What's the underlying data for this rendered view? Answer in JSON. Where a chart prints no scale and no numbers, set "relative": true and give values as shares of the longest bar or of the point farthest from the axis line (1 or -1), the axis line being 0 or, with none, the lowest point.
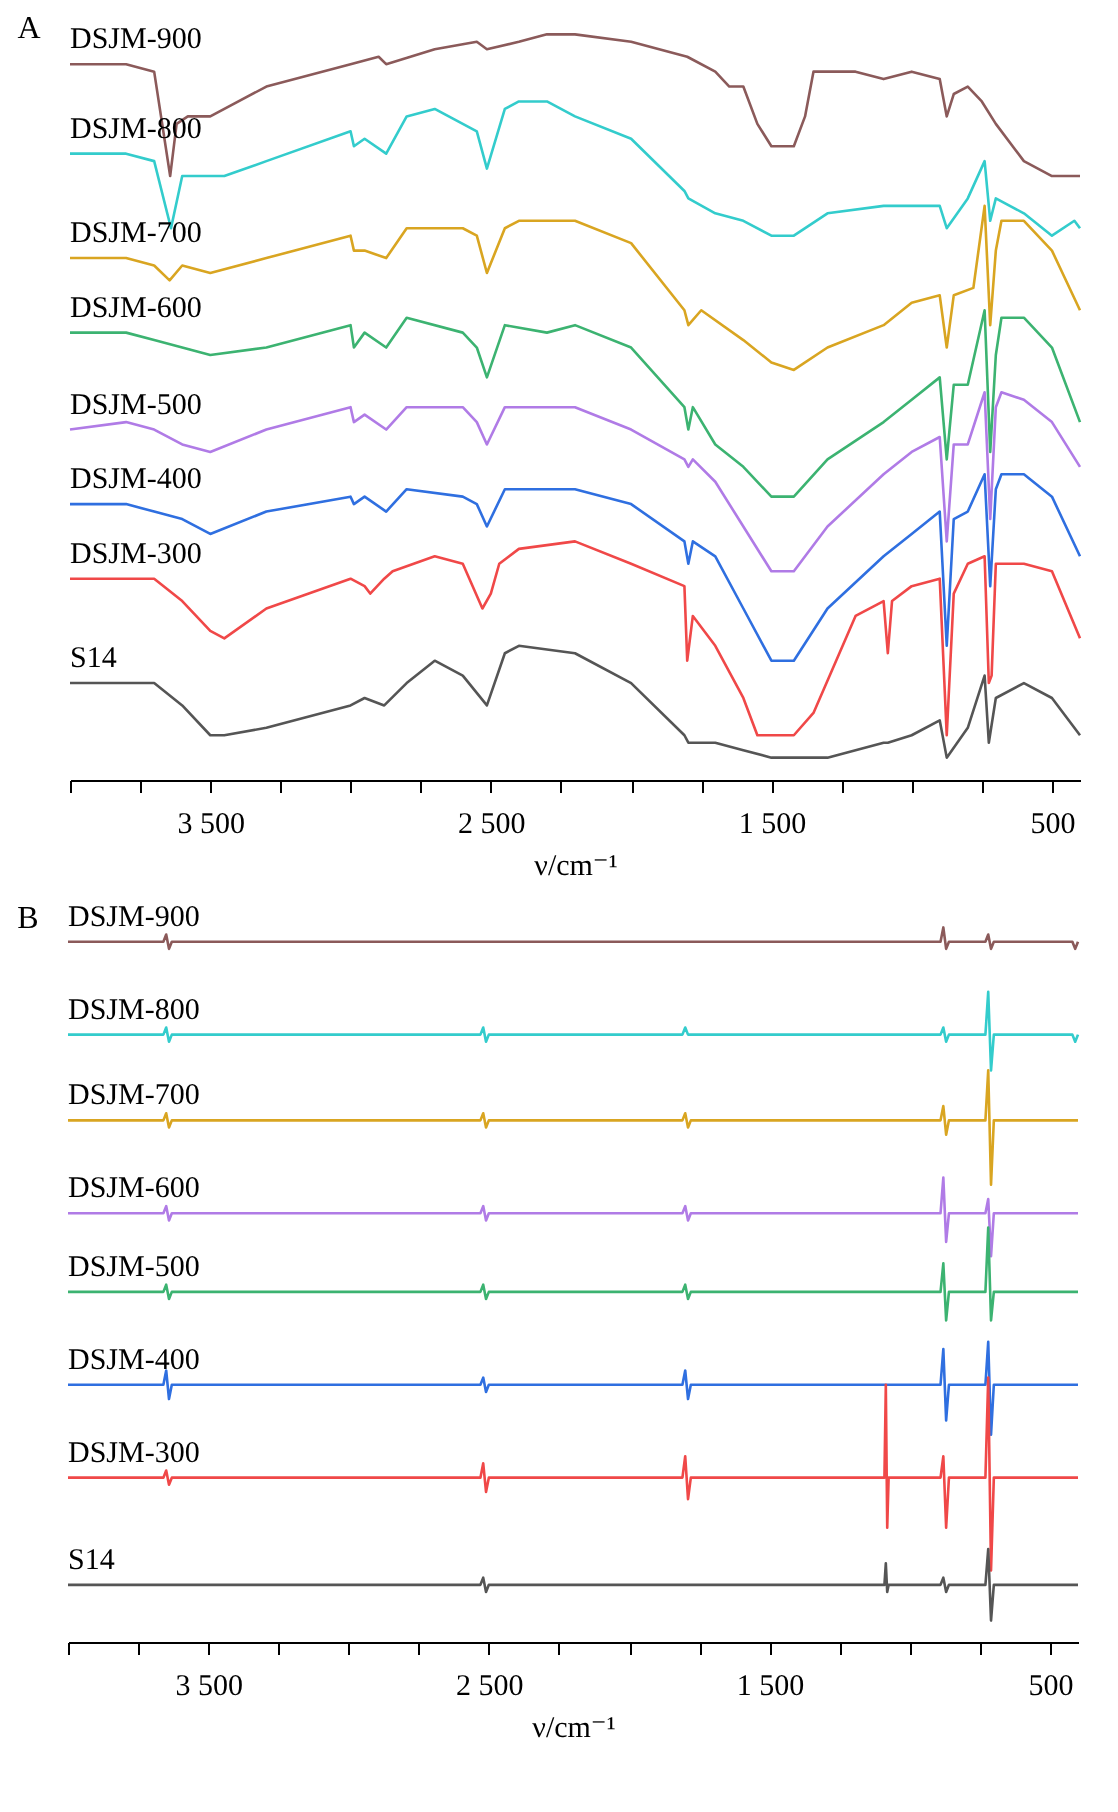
{
  "chart_data": [
    {
      "type": "line",
      "title": "A",
      "xlabel": "ν/cm⁻¹",
      "relative": true,
      "xlim": [
        4000,
        400
      ],
      "xticks": [
        {
          "value": 4000,
          "label": null
        },
        {
          "value": 3750,
          "label": null
        },
        {
          "value": 3500,
          "label": "3 500"
        },
        {
          "value": 3250,
          "label": null
        },
        {
          "value": 3000,
          "label": null
        },
        {
          "value": 2750,
          "label": null
        },
        {
          "value": 2500,
          "label": "2 500"
        },
        {
          "value": 2250,
          "label": null
        },
        {
          "value": 2000,
          "label": null
        },
        {
          "value": 1750,
          "label": null
        },
        {
          "value": 1500,
          "label": "1 500"
        },
        {
          "value": 1250,
          "label": null
        },
        {
          "value": 1000,
          "label": null
        },
        {
          "value": 750,
          "label": null
        },
        500
      ],
      "series": [
        {
          "name": "DSJM-900",
          "color": "#8b5a5a",
          "x": [
            4000,
            3800,
            3700,
            3643,
            3620,
            3580,
            3500,
            3300,
            3000,
            2900,
            2873,
            2700,
            2550,
            2514,
            2400,
            2300,
            2200,
            2000,
            1800,
            1700,
            1650,
            1600,
            1550,
            1500,
            1420,
            1380,
            1350,
            1200,
            1100,
            1000,
            900,
            875,
            850,
            800,
            750,
            700,
            600,
            500,
            400
          ],
          "values": [
            0.96,
            0.96,
            0.95,
            0.81,
            0.88,
            0.89,
            0.89,
            0.93,
            0.96,
            0.97,
            0.96,
            0.98,
            0.99,
            0.98,
            0.99,
            1.0,
            1.0,
            0.99,
            0.97,
            0.95,
            0.93,
            0.93,
            0.88,
            0.85,
            0.85,
            0.89,
            0.95,
            0.95,
            0.94,
            0.95,
            0.94,
            0.89,
            0.92,
            0.93,
            0.91,
            0.88,
            0.83,
            0.81,
            0.81
          ]
        },
        {
          "name": "DSJM-800",
          "color": "#33cccc",
          "x": [
            4000,
            3800,
            3700,
            3640,
            3600,
            3500,
            3450,
            3300,
            3000,
            2988,
            2950,
            2873,
            2800,
            2700,
            2600,
            2550,
            2514,
            2450,
            2400,
            2300,
            2200,
            2000,
            1810,
            1796,
            1700,
            1600,
            1500,
            1420,
            1300,
            1100,
            1000,
            900,
            875,
            800,
            740,
            720,
            700,
            600,
            500,
            420,
            400
          ],
          "values": [
            0.84,
            0.84,
            0.83,
            0.74,
            0.81,
            0.81,
            0.81,
            0.83,
            0.87,
            0.85,
            0.86,
            0.84,
            0.89,
            0.9,
            0.88,
            0.87,
            0.82,
            0.9,
            0.91,
            0.91,
            0.89,
            0.86,
            0.79,
            0.78,
            0.76,
            0.75,
            0.73,
            0.73,
            0.76,
            0.77,
            0.77,
            0.77,
            0.74,
            0.78,
            0.83,
            0.75,
            0.78,
            0.76,
            0.73,
            0.75,
            0.74
          ]
        },
        {
          "name": "DSJM-700",
          "color": "#d9a521",
          "x": [
            4000,
            3800,
            3700,
            3645,
            3600,
            3500,
            3300,
            3000,
            2988,
            2950,
            2873,
            2800,
            2600,
            2550,
            2514,
            2450,
            2400,
            2200,
            2000,
            1810,
            1796,
            1750,
            1600,
            1500,
            1420,
            1300,
            1100,
            1000,
            900,
            875,
            850,
            780,
            740,
            720,
            700,
            680,
            600,
            500,
            400
          ],
          "values": [
            0.7,
            0.7,
            0.69,
            0.67,
            0.69,
            0.68,
            0.7,
            0.73,
            0.71,
            0.71,
            0.7,
            0.74,
            0.74,
            0.73,
            0.68,
            0.74,
            0.75,
            0.75,
            0.72,
            0.63,
            0.61,
            0.63,
            0.59,
            0.56,
            0.55,
            0.58,
            0.61,
            0.64,
            0.65,
            0.58,
            0.65,
            0.66,
            0.77,
            0.61,
            0.71,
            0.75,
            0.75,
            0.71,
            0.63
          ]
        },
        {
          "name": "DSJM-600",
          "color": "#3cb371",
          "x": [
            4000,
            3800,
            3700,
            3600,
            3500,
            3300,
            3000,
            2988,
            2950,
            2873,
            2800,
            2600,
            2550,
            2514,
            2450,
            2300,
            2200,
            2000,
            1810,
            1796,
            1780,
            1700,
            1600,
            1500,
            1420,
            1300,
            1100,
            1000,
            900,
            875,
            850,
            800,
            740,
            720,
            700,
            680,
            600,
            500,
            400
          ],
          "values": [
            0.6,
            0.6,
            0.59,
            0.58,
            0.57,
            0.58,
            0.61,
            0.58,
            0.6,
            0.58,
            0.62,
            0.6,
            0.58,
            0.54,
            0.61,
            0.6,
            0.61,
            0.58,
            0.5,
            0.47,
            0.5,
            0.45,
            0.42,
            0.38,
            0.38,
            0.43,
            0.48,
            0.51,
            0.54,
            0.43,
            0.53,
            0.53,
            0.63,
            0.44,
            0.57,
            0.62,
            0.62,
            0.58,
            0.48
          ]
        },
        {
          "name": "DSJM-500",
          "color": "#b07be6",
          "x": [
            4000,
            3800,
            3700,
            3600,
            3500,
            3300,
            3000,
            2988,
            2950,
            2873,
            2800,
            2600,
            2550,
            2514,
            2450,
            2300,
            2200,
            2000,
            1810,
            1796,
            1780,
            1700,
            1600,
            1500,
            1420,
            1300,
            1100,
            1000,
            900,
            875,
            850,
            800,
            740,
            720,
            700,
            680,
            600,
            500,
            400
          ],
          "values": [
            0.47,
            0.48,
            0.47,
            0.45,
            0.44,
            0.47,
            0.5,
            0.48,
            0.49,
            0.47,
            0.5,
            0.5,
            0.48,
            0.45,
            0.5,
            0.5,
            0.5,
            0.47,
            0.43,
            0.42,
            0.43,
            0.4,
            0.34,
            0.28,
            0.28,
            0.34,
            0.41,
            0.44,
            0.46,
            0.32,
            0.45,
            0.45,
            0.52,
            0.35,
            0.5,
            0.52,
            0.51,
            0.48,
            0.42
          ]
        },
        {
          "name": "DSJM-400",
          "color": "#2f6fe0",
          "x": [
            4000,
            3800,
            3700,
            3600,
            3500,
            3300,
            3000,
            2988,
            2950,
            2873,
            2800,
            2600,
            2550,
            2514,
            2450,
            2300,
            2200,
            2000,
            1810,
            1796,
            1780,
            1700,
            1600,
            1500,
            1420,
            1300,
            1100,
            1000,
            900,
            875,
            850,
            800,
            740,
            720,
            700,
            680,
            600,
            500,
            400
          ],
          "values": [
            0.37,
            0.37,
            0.36,
            0.35,
            0.33,
            0.36,
            0.38,
            0.37,
            0.38,
            0.36,
            0.39,
            0.38,
            0.37,
            0.34,
            0.39,
            0.39,
            0.39,
            0.37,
            0.32,
            0.29,
            0.32,
            0.3,
            0.23,
            0.16,
            0.16,
            0.23,
            0.3,
            0.33,
            0.36,
            0.18,
            0.35,
            0.36,
            0.41,
            0.26,
            0.39,
            0.41,
            0.41,
            0.38,
            0.3
          ]
        },
        {
          "name": "DSJM-300",
          "color": "#f04848",
          "x": [
            4000,
            3800,
            3700,
            3600,
            3500,
            3450,
            3300,
            3000,
            2950,
            2930,
            2880,
            2850,
            2700,
            2600,
            2530,
            2500,
            2470,
            2400,
            2200,
            2000,
            1810,
            1800,
            1780,
            1700,
            1600,
            1550,
            1500,
            1420,
            1350,
            1200,
            1100,
            1085,
            1070,
            1000,
            900,
            875,
            850,
            800,
            740,
            725,
            715,
            700,
            600,
            500,
            400
          ],
          "values": [
            0.27,
            0.27,
            0.27,
            0.24,
            0.2,
            0.19,
            0.23,
            0.27,
            0.26,
            0.25,
            0.27,
            0.28,
            0.3,
            0.29,
            0.23,
            0.25,
            0.29,
            0.31,
            0.32,
            0.29,
            0.26,
            0.16,
            0.22,
            0.18,
            0.11,
            0.06,
            0.06,
            0.06,
            0.09,
            0.22,
            0.24,
            0.17,
            0.24,
            0.26,
            0.27,
            0.06,
            0.25,
            0.29,
            0.3,
            0.13,
            0.14,
            0.29,
            0.29,
            0.28,
            0.19
          ]
        },
        {
          "name": "S14",
          "color": "#555555",
          "x": [
            4000,
            3800,
            3700,
            3600,
            3500,
            3450,
            3300,
            3000,
            2950,
            2880,
            2800,
            2700,
            2600,
            2514,
            2450,
            2400,
            2200,
            2000,
            1810,
            1796,
            1700,
            1600,
            1500,
            1300,
            1100,
            1085,
            1000,
            900,
            875,
            800,
            740,
            725,
            700,
            600,
            500,
            400
          ],
          "values": [
            0.13,
            0.13,
            0.13,
            0.1,
            0.06,
            0.06,
            0.07,
            0.1,
            0.11,
            0.1,
            0.13,
            0.16,
            0.14,
            0.1,
            0.17,
            0.18,
            0.17,
            0.13,
            0.06,
            0.05,
            0.05,
            0.04,
            0.03,
            0.03,
            0.05,
            0.05,
            0.06,
            0.08,
            0.03,
            0.07,
            0.14,
            0.05,
            0.11,
            0.13,
            0.11,
            0.06
          ]
        }
      ]
    },
    {
      "type": "line",
      "title": "B",
      "xlabel": "ν/cm⁻¹",
      "relative": true,
      "xlim": [
        4000,
        400
      ],
      "xticks": [
        {
          "value": 4000,
          "label": null
        },
        {
          "value": 3750,
          "label": null
        },
        {
          "value": 3500,
          "label": "3 500"
        },
        {
          "value": 3250,
          "label": null
        },
        {
          "value": 3000,
          "label": null
        },
        {
          "value": 2750,
          "label": null
        },
        {
          "value": 2500,
          "label": "2 500"
        },
        {
          "value": 2250,
          "label": null
        },
        {
          "value": 2000,
          "label": null
        },
        {
          "value": 1750,
          "label": null
        },
        {
          "value": 1500,
          "label": "1 500"
        },
        {
          "value": 1250,
          "label": null
        },
        {
          "value": 1000,
          "label": null
        },
        {
          "value": 750,
          "label": null
        },
        500
      ],
      "x": [
        4000,
        3660,
        3650,
        3640,
        3630,
        2530,
        2520,
        2510,
        2500,
        1810,
        1800,
        1790,
        1780,
        1090,
        1085,
        1080,
        1075,
        890,
        880,
        870,
        860,
        730,
        720,
        710,
        700,
        420,
        410,
        400
      ],
      "series": [
        {
          "name": "DSJM-900",
          "color": "#8b5a5a",
          "values": [
            0.98,
            0.98,
            0.99,
            0.97,
            0.98,
            0.98,
            0.98,
            0.98,
            0.98,
            0.98,
            0.98,
            0.98,
            0.98,
            0.98,
            0.98,
            0.98,
            0.98,
            0.98,
            1.0,
            0.97,
            0.98,
            0.98,
            0.99,
            0.97,
            0.98,
            0.98,
            0.97,
            0.98
          ]
        },
        {
          "name": "DSJM-800",
          "color": "#33cccc",
          "values": [
            0.85,
            0.85,
            0.86,
            0.84,
            0.85,
            0.85,
            0.86,
            0.84,
            0.85,
            0.85,
            0.86,
            0.85,
            0.85,
            0.85,
            0.85,
            0.85,
            0.85,
            0.85,
            0.86,
            0.84,
            0.85,
            0.85,
            0.91,
            0.8,
            0.85,
            0.85,
            0.84,
            0.85
          ]
        },
        {
          "name": "DSJM-700",
          "color": "#d9a521",
          "values": [
            0.73,
            0.73,
            0.74,
            0.72,
            0.73,
            0.73,
            0.74,
            0.72,
            0.73,
            0.73,
            0.74,
            0.72,
            0.73,
            0.73,
            0.73,
            0.73,
            0.73,
            0.73,
            0.75,
            0.71,
            0.73,
            0.73,
            0.8,
            0.64,
            0.73,
            0.73,
            0.73,
            0.73
          ]
        },
        {
          "name": "DSJM-600",
          "color": "#b07be6",
          "values": [
            0.6,
            0.6,
            0.61,
            0.59,
            0.6,
            0.6,
            0.61,
            0.59,
            0.6,
            0.6,
            0.61,
            0.59,
            0.6,
            0.6,
            0.6,
            0.6,
            0.6,
            0.6,
            0.65,
            0.56,
            0.6,
            0.6,
            0.62,
            0.54,
            0.6,
            0.6,
            0.6,
            0.6
          ]
        },
        {
          "name": "DSJM-500",
          "color": "#3cb371",
          "values": [
            0.49,
            0.49,
            0.5,
            0.48,
            0.49,
            0.49,
            0.5,
            0.48,
            0.49,
            0.49,
            0.5,
            0.48,
            0.49,
            0.49,
            0.49,
            0.49,
            0.49,
            0.49,
            0.53,
            0.45,
            0.49,
            0.49,
            0.58,
            0.45,
            0.49,
            0.49,
            0.49,
            0.49
          ]
        },
        {
          "name": "DSJM-400",
          "color": "#2f6fe0",
          "values": [
            0.36,
            0.36,
            0.38,
            0.34,
            0.36,
            0.36,
            0.37,
            0.35,
            0.36,
            0.36,
            0.38,
            0.34,
            0.36,
            0.36,
            0.36,
            0.36,
            0.36,
            0.36,
            0.41,
            0.31,
            0.36,
            0.36,
            0.42,
            0.29,
            0.36,
            0.36,
            0.36,
            0.36
          ]
        },
        {
          "name": "DSJM-300",
          "color": "#f04848",
          "values": [
            0.23,
            0.23,
            0.24,
            0.22,
            0.23,
            0.23,
            0.25,
            0.21,
            0.23,
            0.23,
            0.26,
            0.2,
            0.23,
            0.23,
            0.36,
            0.16,
            0.23,
            0.23,
            0.26,
            0.16,
            0.23,
            0.23,
            0.37,
            0.1,
            0.23,
            0.23,
            0.23,
            0.23
          ]
        },
        {
          "name": "S14",
          "color": "#555555",
          "values": [
            0.08,
            0.08,
            0.08,
            0.08,
            0.08,
            0.08,
            0.09,
            0.07,
            0.08,
            0.08,
            0.08,
            0.08,
            0.08,
            0.08,
            0.11,
            0.07,
            0.08,
            0.08,
            0.09,
            0.07,
            0.08,
            0.08,
            0.13,
            0.03,
            0.08,
            0.08,
            0.08,
            0.08
          ]
        }
      ]
    }
  ]
}
